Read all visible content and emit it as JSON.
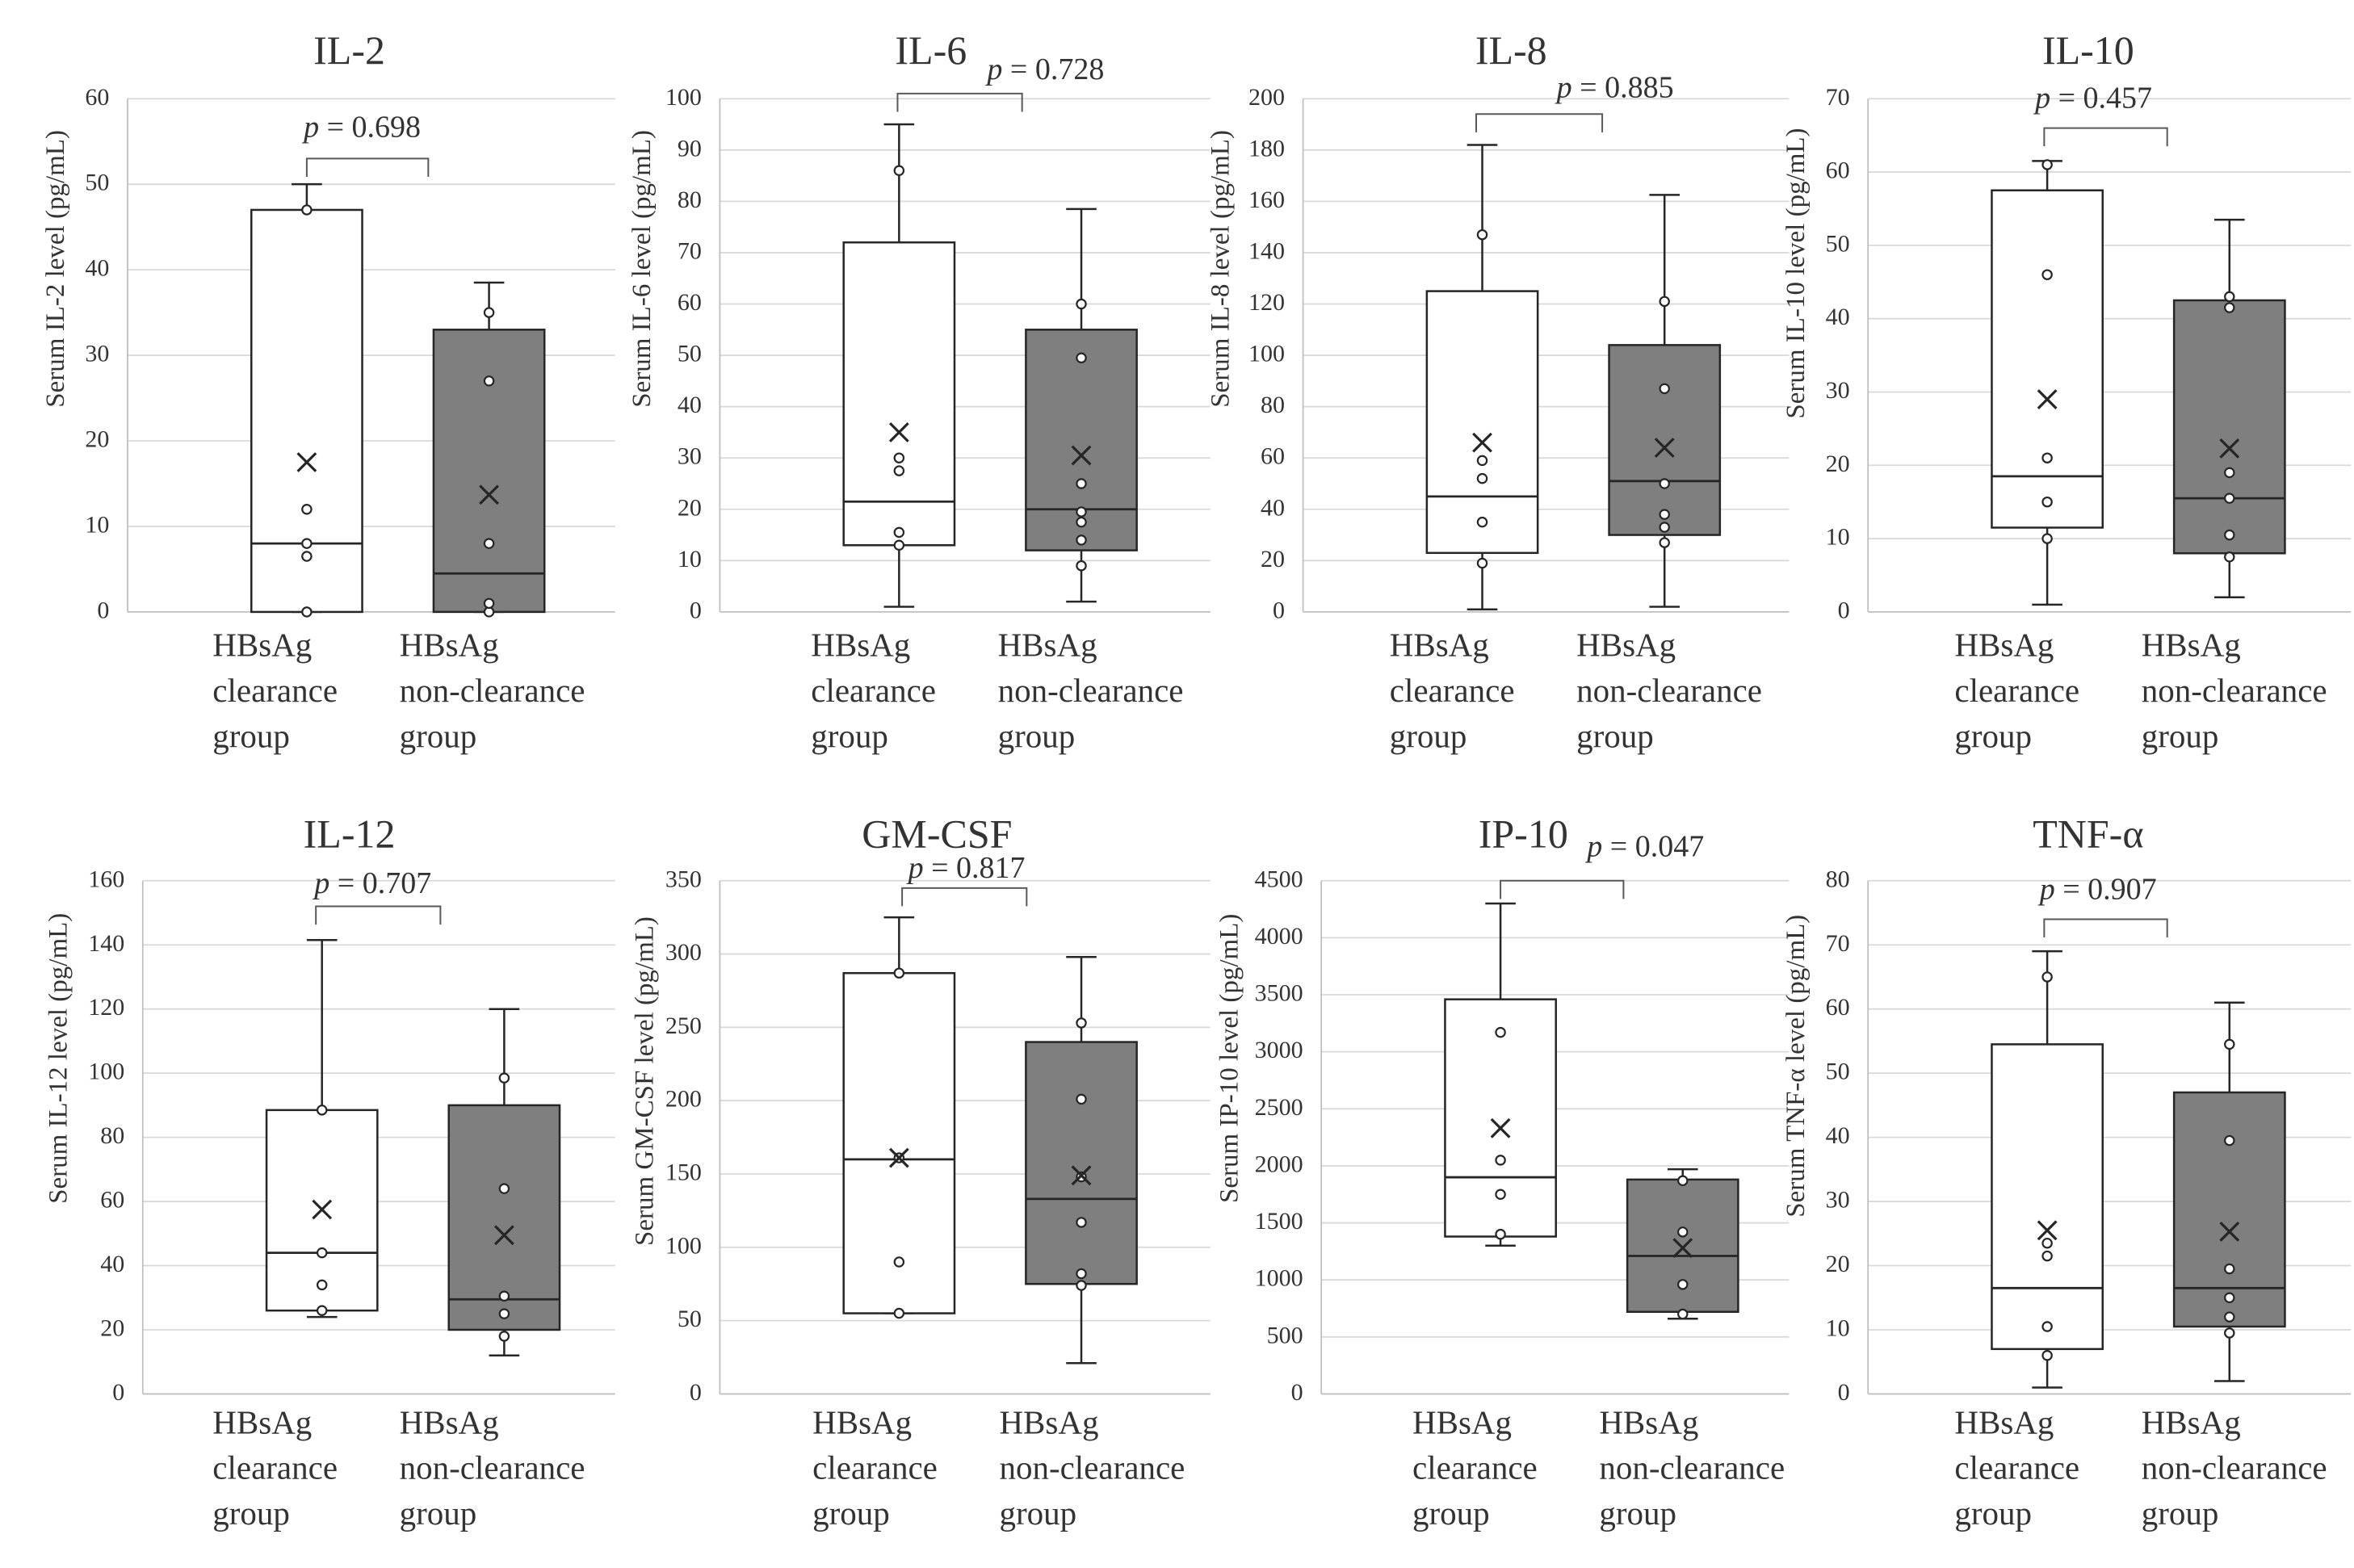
{
  "colors": {
    "clearance_fill": "#ffffff",
    "non_clearance_fill": "#7f7f7f",
    "stroke": "#262626",
    "grid": "#d9d9d9",
    "axis": "#bfbfbf"
  },
  "categories": [
    [
      "HBsAg",
      "clearance",
      "group"
    ],
    [
      "HBsAg",
      "non-clearance",
      "group"
    ]
  ],
  "chart_data": [
    {
      "type": "boxplot",
      "title": "IL-2",
      "ylabel": "Serum IL-2 level (pg/mL)",
      "ylim": [
        0,
        60
      ],
      "yticks": [
        0,
        10,
        20,
        30,
        40,
        50,
        60
      ],
      "p_prefix": "p",
      "p_value": " = 0.698",
      "bracket_y": 53,
      "series": [
        {
          "name": "HBsAg clearance group",
          "min": 0,
          "q1": 0,
          "median": 8,
          "q3": 47,
          "max": 50,
          "mean": 17.5,
          "points": [
            0,
            6.5,
            8,
            12,
            47
          ]
        },
        {
          "name": "HBsAg non-clearance group",
          "min": 0,
          "q1": 0,
          "median": 4.5,
          "q3": 33,
          "max": 38.5,
          "mean": 13.7,
          "points": [
            0,
            1,
            8,
            27,
            35
          ]
        }
      ]
    },
    {
      "type": "boxplot",
      "title": "IL-6",
      "ylabel": "Serum IL-6 level (pg/mL)",
      "ylim": [
        0,
        100
      ],
      "yticks": [
        0,
        10,
        20,
        30,
        40,
        50,
        60,
        70,
        80,
        90,
        100
      ],
      "p_prefix": "p",
      "p_value": " = 0.728",
      "bracket_y": 101,
      "series": [
        {
          "name": "HBsAg clearance group",
          "min": 1,
          "q1": 13,
          "median": 21.5,
          "q3": 72,
          "max": 95,
          "mean": 35,
          "points": [
            13,
            15.5,
            27.5,
            30,
            86
          ]
        },
        {
          "name": "HBsAg non-clearance group",
          "min": 2,
          "q1": 12,
          "median": 20,
          "q3": 55,
          "max": 78.5,
          "mean": 30.5,
          "points": [
            9,
            14,
            17.5,
            19.5,
            25,
            49.5,
            60
          ]
        }
      ]
    },
    {
      "type": "boxplot",
      "title": "IL-8",
      "ylabel": "Serum IL-8 level (pg/mL)",
      "ylim": [
        0,
        200
      ],
      "yticks": [
        0,
        20,
        40,
        60,
        80,
        100,
        120,
        140,
        160,
        180,
        200
      ],
      "p_prefix": "p",
      "p_value": " = 0.885",
      "bracket_y": 194,
      "series": [
        {
          "name": "HBsAg clearance group",
          "min": 1,
          "q1": 23,
          "median": 45,
          "q3": 125,
          "max": 182,
          "mean": 66,
          "points": [
            19,
            35,
            52,
            59,
            147
          ]
        },
        {
          "name": "HBsAg non-clearance group",
          "min": 2,
          "q1": 30,
          "median": 51,
          "q3": 104,
          "max": 162.5,
          "mean": 64,
          "points": [
            27,
            33,
            38,
            50,
            87,
            121
          ]
        }
      ]
    },
    {
      "type": "boxplot",
      "title": "IL-10",
      "ylabel": "Serum IL-10 level (pg/mL)",
      "ylim": [
        0,
        70
      ],
      "yticks": [
        0,
        10,
        20,
        30,
        40,
        50,
        60,
        70
      ],
      "p_prefix": "p",
      "p_value": " = 0.457",
      "bracket_y": 66,
      "series": [
        {
          "name": "HBsAg clearance group",
          "min": 1,
          "q1": 11.5,
          "median": 18.5,
          "q3": 57.5,
          "max": 61.5,
          "mean": 29,
          "points": [
            10,
            15,
            21,
            46,
            61
          ]
        },
        {
          "name": "HBsAg non-clearance group",
          "min": 2,
          "q1": 8,
          "median": 15.5,
          "q3": 42.5,
          "max": 53.5,
          "mean": 22.3,
          "points": [
            7.5,
            10.5,
            15.5,
            19,
            41.5,
            43
          ]
        }
      ]
    },
    {
      "type": "boxplot",
      "title": "IL-12",
      "ylabel": "Serum IL-12 level (pg/mL)",
      "ylim": [
        0,
        160
      ],
      "yticks": [
        0,
        20,
        40,
        60,
        80,
        100,
        120,
        140,
        160
      ],
      "p_prefix": "p",
      "p_value": " = 0.707",
      "bracket_y": 152,
      "series": [
        {
          "name": "HBsAg clearance group",
          "min": 24,
          "q1": 26,
          "median": 44,
          "q3": 88.5,
          "max": 141.5,
          "mean": 57.5,
          "points": [
            26,
            34,
            44,
            88.5
          ]
        },
        {
          "name": "HBsAg non-clearance group",
          "min": 12,
          "q1": 20,
          "median": 29.5,
          "q3": 90,
          "max": 120,
          "mean": 49.5,
          "points": [
            18,
            25,
            30.5,
            64,
            98.5
          ]
        }
      ]
    },
    {
      "type": "boxplot",
      "title": "GM-CSF",
      "ylabel": "Serum GM-CSF level (pg/mL)",
      "ylim": [
        0,
        350
      ],
      "yticks": [
        0,
        50,
        100,
        150,
        200,
        250,
        300,
        350
      ],
      "p_prefix": "p",
      "p_value": " = 0.817",
      "bracket_y": 345,
      "series": [
        {
          "name": "HBsAg clearance group",
          "min": 55,
          "q1": 55,
          "median": 160,
          "q3": 287,
          "max": 325,
          "mean": 161,
          "points": [
            55,
            90,
            161,
            287
          ]
        },
        {
          "name": "HBsAg non-clearance group",
          "min": 21,
          "q1": 75,
          "median": 133,
          "q3": 240,
          "max": 298,
          "mean": 149,
          "points": [
            74,
            82,
            117,
            148,
            201,
            253
          ]
        }
      ]
    },
    {
      "type": "boxplot",
      "title": "IP-10",
      "ylabel": "Serum IP-10 level (pg/mL)",
      "ylim": [
        0,
        4500
      ],
      "yticks": [
        0,
        500,
        1000,
        1500,
        2000,
        2500,
        3000,
        3500,
        4000,
        4500
      ],
      "p_prefix": "p",
      "p_value": " = 0.047",
      "bracket_y": 4500,
      "series": [
        {
          "name": "HBsAg clearance group",
          "min": 1300,
          "q1": 1380,
          "median": 1900,
          "q3": 3460,
          "max": 4300,
          "mean": 2330,
          "points": [
            1400,
            1750,
            2050,
            3170
          ]
        },
        {
          "name": "HBsAg non-clearance group",
          "min": 660,
          "q1": 720,
          "median": 1210,
          "q3": 1880,
          "max": 1970,
          "mean": 1280,
          "points": [
            700,
            960,
            1420,
            1870
          ]
        }
      ]
    },
    {
      "type": "boxplot",
      "title": "TNF-α",
      "ylabel": "Serum TNF-α level (pg/mL)",
      "ylim": [
        0,
        80
      ],
      "yticks": [
        0,
        10,
        20,
        30,
        40,
        50,
        60,
        70,
        80
      ],
      "p_prefix": "p",
      "p_value": " = 0.907",
      "bracket_y": 74,
      "series": [
        {
          "name": "HBsAg clearance group",
          "min": 1,
          "q1": 7,
          "median": 16.5,
          "q3": 54.5,
          "max": 69,
          "mean": 25.5,
          "points": [
            6,
            10.5,
            21.5,
            23.5,
            65
          ]
        },
        {
          "name": "HBsAg non-clearance group",
          "min": 2,
          "q1": 10.5,
          "median": 16.5,
          "q3": 47,
          "max": 61,
          "mean": 25.3,
          "points": [
            9.5,
            12,
            15,
            19.5,
            39.5,
            54.5
          ]
        }
      ]
    }
  ]
}
